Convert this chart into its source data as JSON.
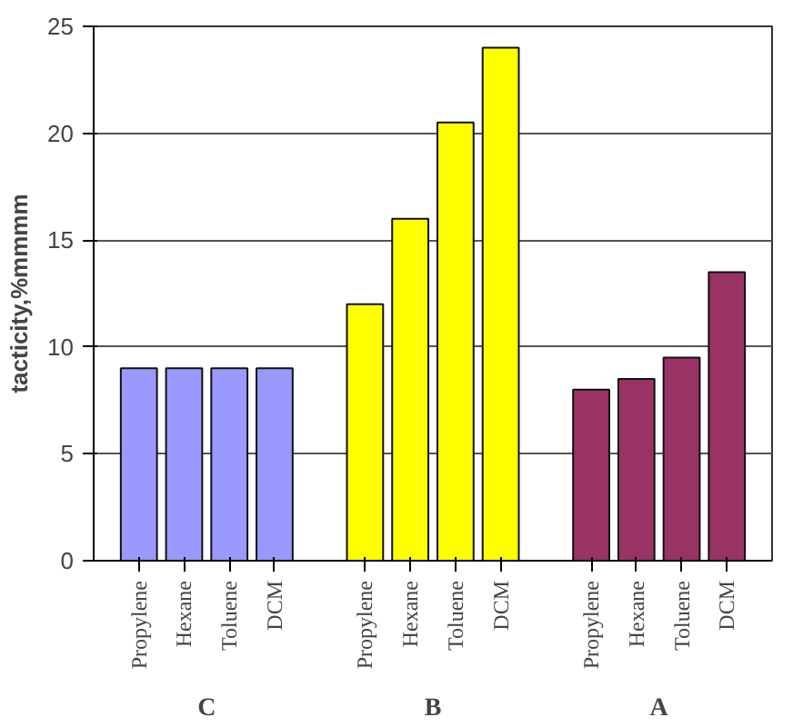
{
  "chart_data": {
    "type": "bar",
    "ylabel": "tacticity,%mmmm",
    "categories": [
      "C",
      "B",
      "A"
    ],
    "series": [
      {
        "name": "Propylene",
        "colors": [
          "#9999ff",
          "#ffff00",
          "#993366"
        ],
        "values": [
          9,
          12,
          8
        ]
      },
      {
        "name": "Hexane",
        "colors": [
          "#9999ff",
          "#ffff00",
          "#993366"
        ],
        "values": [
          9,
          16,
          8.5
        ]
      },
      {
        "name": "Toluene",
        "colors": [
          "#9999ff",
          "#ffff00",
          "#993366"
        ],
        "values": [
          9,
          20.5,
          9.5
        ]
      },
      {
        "name": "DCM",
        "colors": [
          "#9999ff",
          "#ffff00",
          "#993366"
        ],
        "values": [
          9,
          24,
          13.5
        ]
      }
    ],
    "ylim": [
      0,
      25
    ],
    "yticks": [
      0,
      5,
      10,
      15,
      20,
      25
    ],
    "grid": "y"
  }
}
